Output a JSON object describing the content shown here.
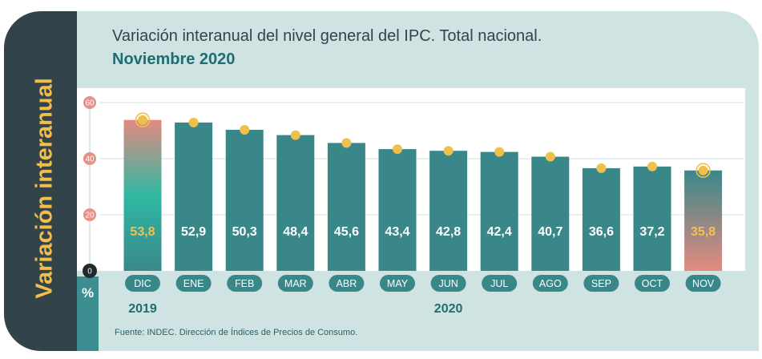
{
  "side_label": "Variación interanual",
  "unit_label": "%",
  "title_line1": "Variación interanual del nivel general del IPC. Total nacional.",
  "title_line2": "Noviembre 2020",
  "source": "Fuente: INDEC. Dirección de Índices de Precios de Consumo.",
  "colors": {
    "bar": "#3a878a",
    "highlight_top": "#e38a80",
    "highlight_mid": "#2fb9a3",
    "dot": "#f0c04c",
    "label_white": "#ffffff",
    "label_yellow": "#f3c24d",
    "year": "#1f6d72"
  },
  "chart_data": {
    "type": "bar",
    "title": "Variación interanual del nivel general del IPC. Total nacional. Noviembre 2020",
    "ylabel": "%",
    "ylim": [
      0,
      60
    ],
    "yticks": [
      0,
      20,
      40,
      60
    ],
    "grid": true,
    "categories": [
      "DIC",
      "ENE",
      "FEB",
      "MAR",
      "ABR",
      "MAY",
      "JUN",
      "JUL",
      "AGO",
      "SEP",
      "OCT",
      "NOV"
    ],
    "values": [
      53.8,
      52.9,
      50.3,
      48.4,
      45.6,
      43.4,
      42.8,
      42.4,
      40.7,
      36.6,
      37.2,
      35.8
    ],
    "value_labels": [
      "53,8",
      "52,9",
      "50,3",
      "48,4",
      "45,6",
      "43,4",
      "42,8",
      "42,4",
      "40,7",
      "36,6",
      "37,2",
      "35,8"
    ],
    "highlighted": [
      "DIC",
      "NOV"
    ],
    "year_labels": [
      {
        "text": "2019",
        "category": "DIC"
      },
      {
        "text": "2020",
        "category": "JUN"
      }
    ]
  }
}
